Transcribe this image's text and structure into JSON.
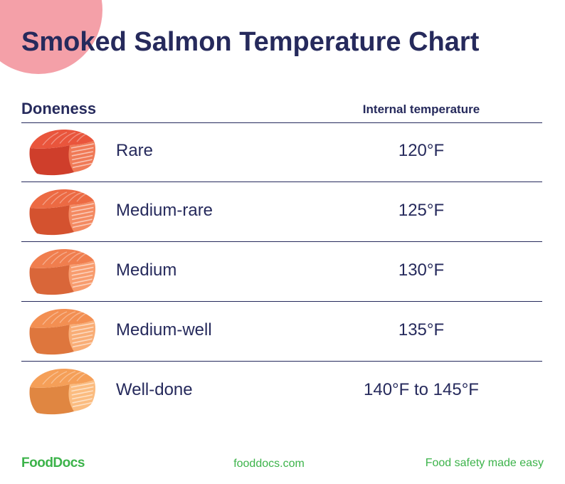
{
  "title": "Smoked Salmon Temperature Chart",
  "table": {
    "headers": {
      "doneness": "Doneness",
      "temperature": "Internal temperature"
    },
    "rows": [
      {
        "doneness": "Rare",
        "temperature": "120°F",
        "icon": "salmon-fillet-icon",
        "color_main": "#e9553c",
        "color_light": "#f07a57",
        "color_dark": "#cf3e2b"
      },
      {
        "doneness": "Medium-rare",
        "temperature": "125°F",
        "icon": "salmon-fillet-icon",
        "color_main": "#ec6a43",
        "color_light": "#f48a62",
        "color_dark": "#d4522f"
      },
      {
        "doneness": "Medium",
        "temperature": "130°F",
        "icon": "salmon-fillet-icon",
        "color_main": "#f07e4e",
        "color_light": "#f89c6e",
        "color_dark": "#d96639"
      },
      {
        "doneness": "Medium-well",
        "temperature": "135°F",
        "icon": "salmon-fillet-icon",
        "color_main": "#f38f52",
        "color_light": "#f9ad76",
        "color_dark": "#de763d"
      },
      {
        "doneness": "Well-done",
        "temperature": "140°F to 145°F",
        "icon": "salmon-fillet-icon",
        "color_main": "#f59f58",
        "color_light": "#fbbc80",
        "color_dark": "#e08641"
      }
    ]
  },
  "footer": {
    "logo": "FoodDocs",
    "url": "fooddocs.com",
    "tagline": "Food safety made easy"
  },
  "colors": {
    "navy": "#262a5c",
    "green": "#3cb34a",
    "pink": "#f4a0a8"
  }
}
